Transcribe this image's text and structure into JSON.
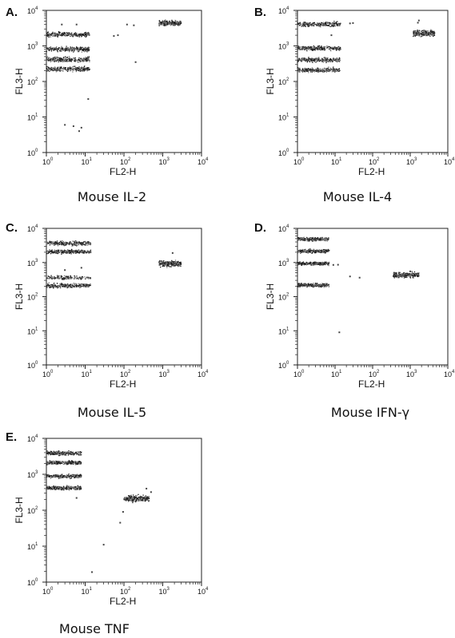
{
  "chart_data": [
    {
      "type": "scatter",
      "panel": "A.",
      "title": "Mouse IL-2",
      "xlabel": "FL2-H",
      "ylabel": "FL3-H",
      "xscale": "log",
      "yscale": "log",
      "xlim": [
        1,
        10000
      ],
      "ylim": [
        1,
        10000
      ],
      "tick_base": "10",
      "tick_exponents": [
        "0",
        "1",
        "2",
        "3",
        "4"
      ],
      "clusters": [
        {
          "x": [
            1,
            13
          ],
          "y": [
            1700,
            2600
          ],
          "density": "dense"
        },
        {
          "x": [
            1,
            13
          ],
          "y": [
            650,
            1000
          ],
          "density": "dense"
        },
        {
          "x": [
            1,
            13
          ],
          "y": [
            330,
            520
          ],
          "density": "dense"
        },
        {
          "x": [
            1,
            13
          ],
          "y": [
            180,
            280
          ],
          "density": "dense"
        },
        {
          "x": [
            800,
            3000
          ],
          "y": [
            3500,
            5500
          ],
          "density": "dense"
        }
      ],
      "points": [
        {
          "x": 3,
          "y": 6
        },
        {
          "x": 5,
          "y": 5.5
        },
        {
          "x": 7,
          "y": 4
        },
        {
          "x": 8,
          "y": 5
        },
        {
          "x": 12,
          "y": 32
        },
        {
          "x": 200,
          "y": 350
        },
        {
          "x": 55,
          "y": 1900
        },
        {
          "x": 70,
          "y": 2000
        },
        {
          "x": 120,
          "y": 4000
        },
        {
          "x": 180,
          "y": 3800
        },
        {
          "x": 2.5,
          "y": 4000
        },
        {
          "x": 6,
          "y": 4000
        }
      ]
    },
    {
      "type": "scatter",
      "panel": "B.",
      "title": "Mouse IL-4",
      "xlabel": "FL2-H",
      "ylabel": "FL3-H",
      "xscale": "log",
      "yscale": "log",
      "xlim": [
        1,
        10000
      ],
      "ylim": [
        1,
        10000
      ],
      "tick_base": "10",
      "tick_exponents": [
        "0",
        "1",
        "2",
        "3",
        "4"
      ],
      "clusters": [
        {
          "x": [
            1,
            14
          ],
          "y": [
            3300,
            5000
          ],
          "density": "dense"
        },
        {
          "x": [
            1,
            14
          ],
          "y": [
            700,
            1050
          ],
          "density": "dense"
        },
        {
          "x": [
            1,
            14
          ],
          "y": [
            330,
            500
          ],
          "density": "dense"
        },
        {
          "x": [
            1,
            14
          ],
          "y": [
            170,
            260
          ],
          "density": "dense"
        },
        {
          "x": [
            1200,
            4500
          ],
          "y": [
            1700,
            3000
          ],
          "density": "dense"
        }
      ],
      "points": [
        {
          "x": 1600,
          "y": 4500
        },
        {
          "x": 1700,
          "y": 5200
        },
        {
          "x": 25,
          "y": 4300
        },
        {
          "x": 30,
          "y": 4400
        },
        {
          "x": 8,
          "y": 2000
        }
      ]
    },
    {
      "type": "scatter",
      "panel": "C.",
      "title": "Mouse IL-5",
      "xlabel": "FL2-H",
      "ylabel": "FL3-H",
      "xscale": "log",
      "yscale": "log",
      "xlim": [
        1,
        10000
      ],
      "ylim": [
        1,
        10000
      ],
      "tick_base": "10",
      "tick_exponents": [
        "0",
        "1",
        "2",
        "3",
        "4"
      ],
      "clusters": [
        {
          "x": [
            1,
            14
          ],
          "y": [
            3000,
            4500
          ],
          "density": "dense"
        },
        {
          "x": [
            1,
            14
          ],
          "y": [
            1700,
            2500
          ],
          "density": "dense"
        },
        {
          "x": [
            1,
            14
          ],
          "y": [
            300,
            430
          ],
          "density": "medium"
        },
        {
          "x": [
            1,
            14
          ],
          "y": [
            170,
            260
          ],
          "density": "dense"
        },
        {
          "x": [
            800,
            3000
          ],
          "y": [
            700,
            1200
          ],
          "density": "dense"
        }
      ],
      "points": [
        {
          "x": 1800,
          "y": 1900
        },
        {
          "x": 3,
          "y": 600
        },
        {
          "x": 8,
          "y": 700
        }
      ]
    },
    {
      "type": "scatter",
      "panel": "D.",
      "title": "Mouse IFN-γ",
      "xlabel": "FL2-H",
      "ylabel": "FL3-H",
      "xscale": "log",
      "yscale": "log",
      "xlim": [
        1,
        10000
      ],
      "ylim": [
        1,
        10000
      ],
      "tick_base": "10",
      "tick_exponents": [
        "0",
        "1",
        "2",
        "3",
        "4"
      ],
      "clusters": [
        {
          "x": [
            1,
            7
          ],
          "y": [
            4000,
            5800
          ],
          "density": "dense"
        },
        {
          "x": [
            1,
            7
          ],
          "y": [
            1800,
            2600
          ],
          "density": "dense"
        },
        {
          "x": [
            1,
            7
          ],
          "y": [
            800,
            1100
          ],
          "density": "dense"
        },
        {
          "x": [
            1,
            7
          ],
          "y": [
            180,
            260
          ],
          "density": "dense"
        },
        {
          "x": [
            350,
            1700
          ],
          "y": [
            330,
            560
          ],
          "density": "dense"
        }
      ],
      "points": [
        {
          "x": 13,
          "y": 9
        },
        {
          "x": 25,
          "y": 390
        },
        {
          "x": 45,
          "y": 360
        },
        {
          "x": 9,
          "y": 850
        },
        {
          "x": 12,
          "y": 860
        },
        {
          "x": 1000,
          "y": 550
        }
      ]
    },
    {
      "type": "scatter",
      "panel": "E.",
      "title": "Mouse TNF",
      "xlabel": "FL2-H",
      "ylabel": "FL3-H",
      "xscale": "log",
      "yscale": "log",
      "xlim": [
        1,
        10000
      ],
      "ylim": [
        1,
        10000
      ],
      "tick_base": "10",
      "tick_exponents": [
        "0",
        "1",
        "2",
        "3",
        "4"
      ],
      "clusters": [
        {
          "x": [
            1,
            8
          ],
          "y": [
            3200,
            4700
          ],
          "density": "dense"
        },
        {
          "x": [
            1,
            8
          ],
          "y": [
            1800,
            2500
          ],
          "density": "dense"
        },
        {
          "x": [
            1,
            8
          ],
          "y": [
            750,
            1050
          ],
          "density": "dense"
        },
        {
          "x": [
            1,
            8
          ],
          "y": [
            350,
            500
          ],
          "density": "dense"
        },
        {
          "x": [
            100,
            450
          ],
          "y": [
            160,
            280
          ],
          "density": "dense"
        }
      ],
      "points": [
        {
          "x": 6,
          "y": 220
        },
        {
          "x": 30,
          "y": 11
        },
        {
          "x": 15,
          "y": 1.9
        },
        {
          "x": 80,
          "y": 45
        },
        {
          "x": 95,
          "y": 90
        },
        {
          "x": 380,
          "y": 400
        },
        {
          "x": 500,
          "y": 320
        }
      ]
    }
  ]
}
